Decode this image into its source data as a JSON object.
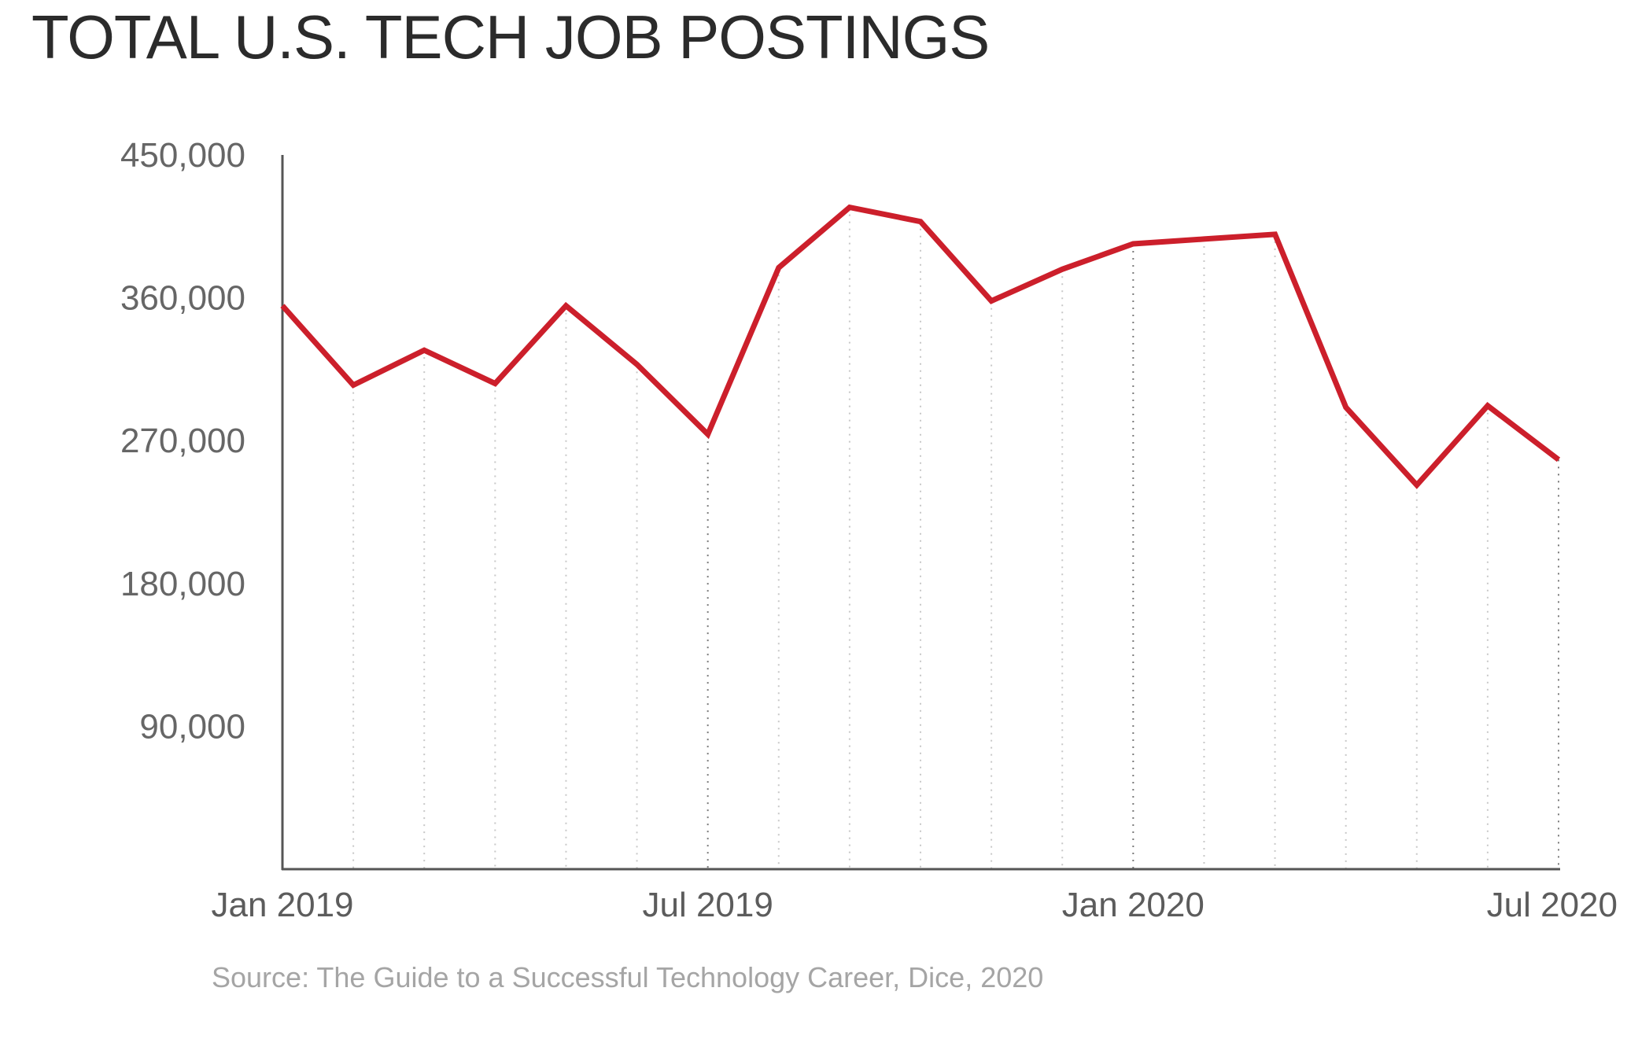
{
  "title": "TOTAL U.S. TECH JOB POSTINGS",
  "source": "Source: The Guide to a Successful Technology Career, Dice, 2020",
  "colors": {
    "line": "#cc1f2b",
    "axis": "#555555",
    "gridline": "#c8c8c8",
    "tick_text": "#666666",
    "source_text": "#a5a5a5"
  },
  "chart_data": {
    "type": "line",
    "title": "TOTAL U.S. TECH JOB POSTINGS",
    "xlabel": "",
    "ylabel": "",
    "ylim": [
      0,
      450000
    ],
    "yticks": [
      90000,
      180000,
      270000,
      360000,
      450000
    ],
    "ytick_labels": [
      "90,000",
      "180,000",
      "270,000",
      "360,000",
      "450,000"
    ],
    "xtick_labels": [
      "Jan 2019",
      "Jul 2019",
      "Jan 2020",
      "Jul 2020"
    ],
    "xtick_index": [
      0,
      6,
      12,
      18
    ],
    "grid": "vertical dotted lines at each month",
    "legend": "none",
    "categories": [
      "Jan 2019",
      "Feb 2019",
      "Mar 2019",
      "Apr 2019",
      "May 2019",
      "Jun 2019",
      "Jul 2019",
      "Aug 2019",
      "Sep 2019",
      "Oct 2019",
      "Nov 2019",
      "Dec 2019",
      "Jan 2020",
      "Feb 2020",
      "Mar 2020",
      "Apr 2020",
      "May 2020",
      "Jun 2020",
      "Jul 2020"
    ],
    "series": [
      {
        "values": [
          355000,
          305000,
          327000,
          306000,
          355000,
          318000,
          274000,
          379000,
          417000,
          408000,
          358000,
          378000,
          394000,
          397000,
          400000,
          291000,
          242000,
          292000,
          258000
        ]
      }
    ]
  }
}
